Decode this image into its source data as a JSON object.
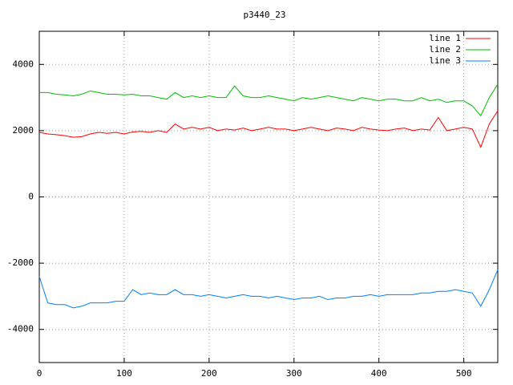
{
  "chart_data": {
    "type": "line",
    "title": "p3440_23",
    "x": [
      0,
      10,
      20,
      30,
      40,
      50,
      60,
      70,
      80,
      90,
      100,
      110,
      120,
      130,
      140,
      150,
      160,
      170,
      180,
      190,
      200,
      210,
      220,
      230,
      240,
      250,
      260,
      270,
      280,
      290,
      300,
      310,
      320,
      330,
      340,
      350,
      360,
      370,
      380,
      390,
      400,
      410,
      420,
      430,
      440,
      450,
      460,
      470,
      480,
      490,
      500,
      510,
      520,
      530,
      540
    ],
    "series": [
      {
        "name": "line 1",
        "color": "#ff0000",
        "values": [
          1950,
          1900,
          1880,
          1850,
          1800,
          1820,
          1900,
          1950,
          1920,
          1950,
          1900,
          1960,
          1980,
          1950,
          2000,
          1950,
          2200,
          2050,
          2100,
          2050,
          2100,
          2000,
          2050,
          2020,
          2080,
          2000,
          2050,
          2100,
          2050,
          2050,
          2000,
          2050,
          2100,
          2050,
          2000,
          2080,
          2050,
          2000,
          2100,
          2050,
          2020,
          2000,
          2050,
          2080,
          2000,
          2050,
          2020,
          2400,
          2000,
          2050,
          2100,
          2050,
          1500,
          2200,
          2600
        ]
      },
      {
        "name": "line 2",
        "color": "#00c000",
        "values": [
          3150,
          3150,
          3100,
          3080,
          3050,
          3100,
          3200,
          3150,
          3100,
          3100,
          3080,
          3100,
          3050,
          3050,
          3000,
          2950,
          3150,
          3000,
          3050,
          3000,
          3050,
          3000,
          3000,
          3350,
          3050,
          3000,
          3000,
          3050,
          3000,
          2950,
          2900,
          3000,
          2950,
          3000,
          3050,
          3000,
          2950,
          2900,
          3000,
          2950,
          2900,
          2950,
          2950,
          2900,
          2900,
          3000,
          2900,
          2950,
          2850,
          2900,
          2900,
          2750,
          2450,
          3000,
          3400
        ]
      },
      {
        "name": "line 3",
        "color": "#0080ff",
        "values": [
          -2400,
          -3200,
          -3250,
          -3250,
          -3350,
          -3300,
          -3200,
          -3200,
          -3200,
          -3150,
          -3150,
          -2800,
          -2950,
          -2900,
          -2950,
          -2950,
          -2800,
          -2950,
          -2950,
          -3000,
          -2950,
          -3000,
          -3050,
          -3000,
          -2950,
          -3000,
          -3000,
          -3050,
          -3000,
          -3050,
          -3100,
          -3050,
          -3050,
          -3000,
          -3100,
          -3050,
          -3050,
          -3000,
          -3000,
          -2950,
          -3000,
          -2950,
          -2950,
          -2950,
          -2950,
          -2900,
          -2900,
          -2850,
          -2850,
          -2800,
          -2850,
          -2900,
          -3300,
          -2800,
          -2200
        ]
      }
    ],
    "xlim": [
      0,
      540
    ],
    "xticks": [
      0,
      100,
      200,
      300,
      400,
      500
    ],
    "ylim": [
      -5000,
      5000
    ],
    "yticks": [
      -4000,
      -2000,
      0,
      2000,
      4000
    ],
    "grid": true,
    "legend": "top-right"
  }
}
